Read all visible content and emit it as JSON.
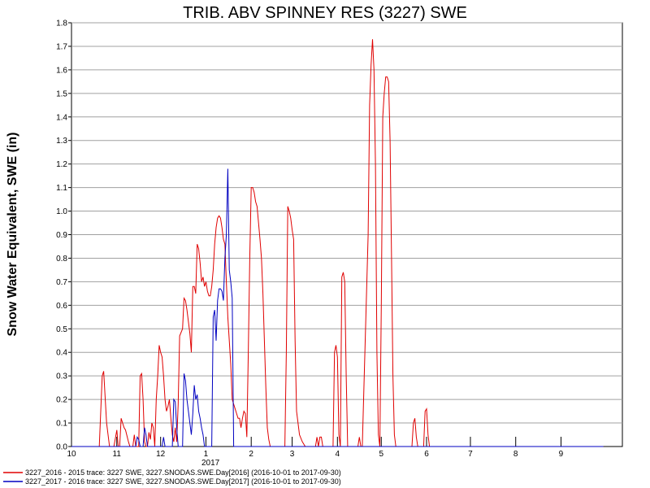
{
  "chart_data": {
    "type": "line",
    "title": "TRIB. ABV SPINNEY RES (3227) SWE",
    "ylabel": "Snow Water Equivalent, SWE (in)",
    "xlabel": "",
    "x_ticks": [
      {
        "label": "10",
        "month": 0
      },
      {
        "label": "11",
        "month": 1
      },
      {
        "label": "12",
        "month": 2
      },
      {
        "label": "1",
        "month": 3
      },
      {
        "label": "2",
        "month": 4
      },
      {
        "label": "3",
        "month": 5
      },
      {
        "label": "4",
        "month": 6
      },
      {
        "label": "5",
        "month": 7
      },
      {
        "label": "6",
        "month": 8
      },
      {
        "label": "7",
        "month": 9
      },
      {
        "label": "8",
        "month": 10
      },
      {
        "label": "9",
        "month": 11
      }
    ],
    "year_label": "2017",
    "xlim": [
      "2016-10-01",
      "2017-09-30"
    ],
    "ylim": [
      0,
      1.8
    ],
    "y_ticks": [
      "0.0",
      "0.1",
      "0.2",
      "0.3",
      "0.4",
      "0.5",
      "0.6",
      "0.7",
      "0.8",
      "0.9",
      "1.0",
      "1.1",
      "1.2",
      "1.3",
      "1.4",
      "1.5",
      "1.6",
      "1.7",
      "1.8"
    ],
    "grid": true,
    "legend_position": "bottom-left",
    "series": [
      {
        "name": "3227_2016 - 2015 trace: 3227 SWE, 3227.SNODAS.SWE.Day[2016] (2016-10-01 to 2017-09-30)",
        "color": "#e00000",
        "points": [
          [
            "2016-10-01",
            0
          ],
          [
            "2016-10-20",
            0
          ],
          [
            "2016-10-22",
            0.3
          ],
          [
            "2016-10-23",
            0.32
          ],
          [
            "2016-10-25",
            0.1
          ],
          [
            "2016-10-27",
            0
          ],
          [
            "2016-10-30",
            0
          ],
          [
            "2016-11-01",
            0.07
          ],
          [
            "2016-11-02",
            0
          ],
          [
            "2016-11-03",
            0
          ],
          [
            "2016-11-04",
            0.12
          ],
          [
            "2016-11-05",
            0.1
          ],
          [
            "2016-11-06",
            0.08
          ],
          [
            "2016-11-07",
            0.07
          ],
          [
            "2016-11-09",
            0.02
          ],
          [
            "2016-11-10",
            0
          ],
          [
            "2016-11-12",
            0
          ],
          [
            "2016-11-13",
            0.05
          ],
          [
            "2016-11-14",
            0
          ],
          [
            "2016-11-16",
            0
          ],
          [
            "2016-11-17",
            0.3
          ],
          [
            "2016-11-18",
            0.31
          ],
          [
            "2016-11-19",
            0.2
          ],
          [
            "2016-11-20",
            0.02
          ],
          [
            "2016-11-21",
            0
          ],
          [
            "2016-11-22",
            0
          ],
          [
            "2016-11-23",
            0.06
          ],
          [
            "2016-11-24",
            0.03
          ],
          [
            "2016-11-25",
            0.1
          ],
          [
            "2016-11-26",
            0.08
          ],
          [
            "2016-11-27",
            0
          ],
          [
            "2016-11-28",
            0.2
          ],
          [
            "2016-11-29",
            0.3
          ],
          [
            "2016-11-30",
            0.43
          ],
          [
            "2016-12-01",
            0.4
          ],
          [
            "2016-12-02",
            0.38
          ],
          [
            "2016-12-03",
            0.3
          ],
          [
            "2016-12-04",
            0.2
          ],
          [
            "2016-12-05",
            0.15
          ],
          [
            "2016-12-06",
            0.17
          ],
          [
            "2016-12-07",
            0.2
          ],
          [
            "2016-12-08",
            0.12
          ],
          [
            "2016-12-09",
            0.05
          ],
          [
            "2016-12-10",
            0.02
          ],
          [
            "2016-12-11",
            0.08
          ],
          [
            "2016-12-12",
            0.02
          ],
          [
            "2016-12-13",
            0.18
          ],
          [
            "2016-12-14",
            0.47
          ],
          [
            "2016-12-16",
            0.5
          ],
          [
            "2016-12-17",
            0.63
          ],
          [
            "2016-12-18",
            0.62
          ],
          [
            "2016-12-19",
            0.58
          ],
          [
            "2016-12-21",
            0.48
          ],
          [
            "2016-12-22",
            0.4
          ],
          [
            "2016-12-23",
            0.68
          ],
          [
            "2016-12-24",
            0.68
          ],
          [
            "2016-12-25",
            0.65
          ],
          [
            "2016-12-26",
            0.86
          ],
          [
            "2016-12-27",
            0.84
          ],
          [
            "2016-12-28",
            0.78
          ],
          [
            "2016-12-29",
            0.7
          ],
          [
            "2016-12-30",
            0.72
          ],
          [
            "2016-12-31",
            0.68
          ],
          [
            "2017-01-01",
            0.7
          ],
          [
            "2017-01-02",
            0.66
          ],
          [
            "2017-01-03",
            0.64
          ],
          [
            "2017-01-04",
            0.64
          ],
          [
            "2017-01-05",
            0.68
          ],
          [
            "2017-01-06",
            0.75
          ],
          [
            "2017-01-07",
            0.86
          ],
          [
            "2017-01-08",
            0.93
          ],
          [
            "2017-01-09",
            0.97
          ],
          [
            "2017-01-10",
            0.98
          ],
          [
            "2017-01-11",
            0.97
          ],
          [
            "2017-01-12",
            0.93
          ],
          [
            "2017-01-13",
            0.88
          ],
          [
            "2017-01-14",
            0.86
          ],
          [
            "2017-01-15",
            0.7
          ],
          [
            "2017-01-16",
            0.55
          ],
          [
            "2017-01-17",
            0.45
          ],
          [
            "2017-01-18",
            0.35
          ],
          [
            "2017-01-19",
            0.2
          ],
          [
            "2017-01-20",
            0.18
          ],
          [
            "2017-01-21",
            0.16
          ],
          [
            "2017-01-22",
            0.14
          ],
          [
            "2017-01-23",
            0.12
          ],
          [
            "2017-01-24",
            0.12
          ],
          [
            "2017-01-25",
            0.08
          ],
          [
            "2017-01-26",
            0.12
          ],
          [
            "2017-01-27",
            0.15
          ],
          [
            "2017-01-28",
            0.14
          ],
          [
            "2017-01-29",
            0.04
          ],
          [
            "2017-01-30",
            0.4
          ],
          [
            "2017-01-31",
            0.8
          ],
          [
            "2017-02-01",
            1.1
          ],
          [
            "2017-02-02",
            1.1
          ],
          [
            "2017-02-03",
            1.08
          ],
          [
            "2017-02-04",
            1.04
          ],
          [
            "2017-02-05",
            1.02
          ],
          [
            "2017-02-06",
            0.95
          ],
          [
            "2017-02-07",
            0.88
          ],
          [
            "2017-02-08",
            0.8
          ],
          [
            "2017-02-09",
            0.65
          ],
          [
            "2017-02-10",
            0.45
          ],
          [
            "2017-02-11",
            0.25
          ],
          [
            "2017-02-12",
            0.08
          ],
          [
            "2017-02-13",
            0.03
          ],
          [
            "2017-02-14",
            0
          ],
          [
            "2017-02-24",
            0
          ],
          [
            "2017-02-25",
            0.4
          ],
          [
            "2017-02-26",
            1.02
          ],
          [
            "2017-02-27",
            1.0
          ],
          [
            "2017-02-28",
            0.97
          ],
          [
            "2017-03-01",
            0.92
          ],
          [
            "2017-03-02",
            0.88
          ],
          [
            "2017-03-03",
            0.45
          ],
          [
            "2017-03-04",
            0.15
          ],
          [
            "2017-03-05",
            0.1
          ],
          [
            "2017-03-06",
            0.05
          ],
          [
            "2017-03-08",
            0.02
          ],
          [
            "2017-03-10",
            0
          ],
          [
            "2017-03-17",
            0
          ],
          [
            "2017-03-18",
            0.04
          ],
          [
            "2017-03-19",
            0
          ],
          [
            "2017-03-20",
            0.04
          ],
          [
            "2017-03-21",
            0.04
          ],
          [
            "2017-03-22",
            0
          ],
          [
            "2017-03-29",
            0
          ],
          [
            "2017-03-30",
            0.4
          ],
          [
            "2017-03-31",
            0.43
          ],
          [
            "2017-04-01",
            0.38
          ],
          [
            "2017-04-02",
            0.05
          ],
          [
            "2017-04-03",
            0
          ],
          [
            "2017-04-04",
            0.72
          ],
          [
            "2017-04-05",
            0.74
          ],
          [
            "2017-04-06",
            0.7
          ],
          [
            "2017-04-07",
            0.3
          ],
          [
            "2017-04-08",
            0
          ],
          [
            "2017-04-15",
            0
          ],
          [
            "2017-04-16",
            0.04
          ],
          [
            "2017-04-17",
            0
          ],
          [
            "2017-04-18",
            0
          ],
          [
            "2017-04-20",
            0.45
          ],
          [
            "2017-04-22",
            0.9
          ],
          [
            "2017-04-23",
            1.45
          ],
          [
            "2017-04-24",
            1.62
          ],
          [
            "2017-04-25",
            1.73
          ],
          [
            "2017-04-26",
            1.6
          ],
          [
            "2017-04-27",
            1.2
          ],
          [
            "2017-04-28",
            0.4
          ],
          [
            "2017-04-29",
            0.05
          ],
          [
            "2017-04-30",
            0
          ],
          [
            "2017-05-01",
            0.6
          ],
          [
            "2017-05-02",
            1.4
          ],
          [
            "2017-05-03",
            1.5
          ],
          [
            "2017-05-04",
            1.57
          ],
          [
            "2017-05-05",
            1.57
          ],
          [
            "2017-05-06",
            1.55
          ],
          [
            "2017-05-07",
            1.3
          ],
          [
            "2017-05-08",
            0.8
          ],
          [
            "2017-05-09",
            0.3
          ],
          [
            "2017-05-10",
            0.05
          ],
          [
            "2017-05-11",
            0
          ],
          [
            "2017-05-22",
            0
          ],
          [
            "2017-05-23",
            0.1
          ],
          [
            "2017-05-24",
            0.12
          ],
          [
            "2017-05-25",
            0.04
          ],
          [
            "2017-05-26",
            0
          ],
          [
            "2017-05-30",
            0
          ],
          [
            "2017-05-31",
            0.15
          ],
          [
            "2017-06-01",
            0.16
          ],
          [
            "2017-06-02",
            0.05
          ],
          [
            "2017-06-03",
            0
          ],
          [
            "2017-09-30",
            0
          ]
        ]
      },
      {
        "name": "3227_2017 - 2016 trace: 3227 SWE, 3227.SNODAS.SWE.Day[2017] (2016-10-01 to 2017-09-30)",
        "color": "#0000c0",
        "points": [
          [
            "2016-10-01",
            0
          ],
          [
            "2016-11-14",
            0
          ],
          [
            "2016-11-15",
            0.04
          ],
          [
            "2016-11-16",
            0.03
          ],
          [
            "2016-11-17",
            0
          ],
          [
            "2016-11-19",
            0
          ],
          [
            "2016-11-20",
            0.08
          ],
          [
            "2016-11-21",
            0.05
          ],
          [
            "2016-11-22",
            0
          ],
          [
            "2016-12-02",
            0
          ],
          [
            "2016-12-03",
            0.04
          ],
          [
            "2016-12-04",
            0
          ],
          [
            "2016-12-09",
            0
          ],
          [
            "2016-12-10",
            0.2
          ],
          [
            "2016-12-11",
            0.19
          ],
          [
            "2016-12-12",
            0.08
          ],
          [
            "2016-12-13",
            0
          ],
          [
            "2016-12-16",
            0
          ],
          [
            "2016-12-17",
            0.31
          ],
          [
            "2016-12-18",
            0.28
          ],
          [
            "2016-12-19",
            0.2
          ],
          [
            "2016-12-20",
            0.15
          ],
          [
            "2016-12-21",
            0.1
          ],
          [
            "2016-12-22",
            0.05
          ],
          [
            "2016-12-23",
            0.14
          ],
          [
            "2016-12-24",
            0.26
          ],
          [
            "2016-12-25",
            0.2
          ],
          [
            "2016-12-26",
            0.22
          ],
          [
            "2016-12-27",
            0.15
          ],
          [
            "2016-12-28",
            0.12
          ],
          [
            "2016-12-29",
            0.08
          ],
          [
            "2016-12-30",
            0.05
          ],
          [
            "2016-12-31",
            0
          ],
          [
            "2017-01-05",
            0
          ],
          [
            "2017-01-06",
            0.55
          ],
          [
            "2017-01-07",
            0.58
          ],
          [
            "2017-01-08",
            0.45
          ],
          [
            "2017-01-09",
            0.62
          ],
          [
            "2017-01-10",
            0.67
          ],
          [
            "2017-01-11",
            0.67
          ],
          [
            "2017-01-12",
            0.66
          ],
          [
            "2017-01-13",
            0.62
          ],
          [
            "2017-01-14",
            0.8
          ],
          [
            "2017-01-15",
            0.9
          ],
          [
            "2017-01-16",
            1.18
          ],
          [
            "2017-01-17",
            0.75
          ],
          [
            "2017-01-18",
            0.7
          ],
          [
            "2017-01-19",
            0.63
          ],
          [
            "2017-01-20",
            0
          ],
          [
            "2017-09-30",
            0
          ]
        ]
      }
    ]
  }
}
